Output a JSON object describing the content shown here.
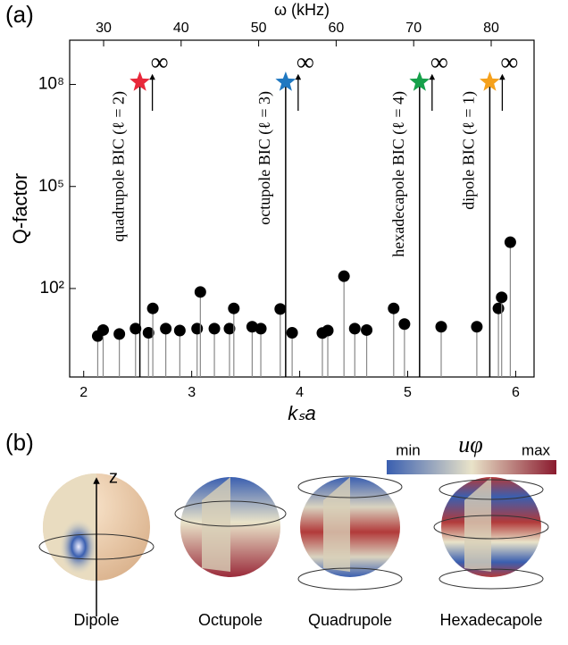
{
  "panel_a_label": "(a)",
  "chart_data": {
    "type": "stem",
    "x_label": "kₛa",
    "y_label": "Q-factor",
    "x2_label": "ω (kHz)",
    "xlim": [
      1.87,
      6.17
    ],
    "xticks": [
      2,
      3,
      4,
      5,
      6
    ],
    "x2lim": [
      25.62,
      85.53
    ],
    "x2ticks": [
      30,
      40,
      50,
      60,
      70,
      80
    ],
    "ylim": [
      0.25,
      2000000000
    ],
    "log_y": true,
    "yticks": [
      {
        "value": 100,
        "label": "10²"
      },
      {
        "value": 100000,
        "label": "10⁵"
      },
      {
        "value": 100000000,
        "label": "10⁸"
      }
    ],
    "color": "#000000",
    "x": [
      2.13,
      2.18,
      2.33,
      2.48,
      2.6,
      2.64,
      2.76,
      2.89,
      3.05,
      3.08,
      3.21,
      3.35,
      3.39,
      3.56,
      3.64,
      3.82,
      3.93,
      4.21,
      4.26,
      4.41,
      4.51,
      4.62,
      4.87,
      4.97,
      5.31,
      5.64,
      5.84,
      5.87,
      5.95
    ],
    "values": [
      4,
      6,
      4.6,
      6.6,
      5,
      26,
      6.6,
      5.8,
      6.6,
      79,
      6.6,
      6.6,
      26,
      7.5,
      6.6,
      25,
      5,
      4.9,
      5.8,
      230,
      6.6,
      6,
      26,
      9,
      7.5,
      7.5,
      26,
      55,
      2300
    ],
    "bics": [
      {
        "x": 2.52,
        "label": "quadrupole BIC (ℓ = 2)",
        "color": "#e8283a",
        "q_label": "∞"
      },
      {
        "x": 3.87,
        "label": "octupole BIC (ℓ = 3)",
        "color": "#1f78c1",
        "q_label": "∞"
      },
      {
        "x": 5.11,
        "label": "hexadecapole BIC (ℓ = 4)",
        "color": "#16a04a",
        "q_label": "∞"
      },
      {
        "x": 5.76,
        "label": "dipole BIC (ℓ = 1)",
        "color": "#f5a11c",
        "q_label": "∞"
      }
    ]
  },
  "panel_b": {
    "label": "(b)",
    "axis_label": "z",
    "colorbar": {
      "min": "min",
      "max": "max",
      "quantity": "uφ"
    },
    "modes": [
      "Dipole",
      "Octupole",
      "Quadrupole",
      "Hexadecapole"
    ]
  }
}
